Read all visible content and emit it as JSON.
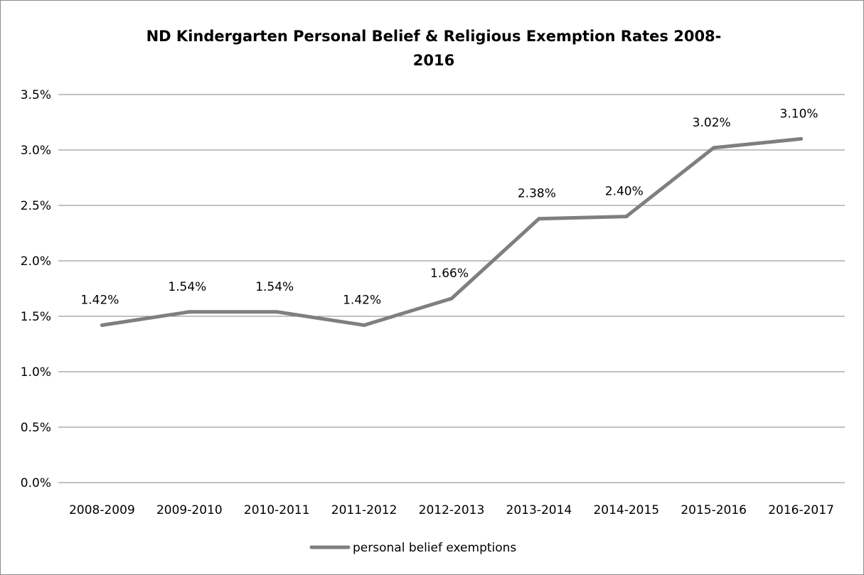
{
  "chart_data": {
    "type": "line",
    "title": "ND Kindergarten Personal Belief & Religious Exemption Rates 2008-2016",
    "title_lines": [
      "ND Kindergarten Personal Belief & Religious Exemption Rates 2008-",
      "2016"
    ],
    "xlabel": "",
    "ylabel": "",
    "categories": [
      "2008-2009",
      "2009-2010",
      "2010-2011",
      "2011-2012",
      "2012-2013",
      "2013-2014",
      "2014-2015",
      "2015-2016",
      "2016-2017"
    ],
    "series": [
      {
        "name": "personal belief exemptions",
        "values": [
          1.42,
          1.54,
          1.54,
          1.42,
          1.66,
          2.38,
          2.4,
          3.02,
          3.1
        ],
        "labels": [
          "1.42%",
          "1.54%",
          "1.54%",
          "1.42%",
          "1.66%",
          "2.38%",
          "2.40%",
          "3.02%",
          "3.10%"
        ],
        "color": "#7f7f7f"
      }
    ],
    "ylim": [
      0,
      3.5
    ],
    "yticks": [
      0,
      0.5,
      1.0,
      1.5,
      2.0,
      2.5,
      3.0,
      3.5
    ],
    "ytick_labels": [
      "0.0%",
      "0.5%",
      "1.0%",
      "1.5%",
      "2.0%",
      "2.5%",
      "3.0%",
      "3.5%"
    ],
    "grid": true,
    "gridline_color": "#868686",
    "legend_position": "bottom"
  }
}
